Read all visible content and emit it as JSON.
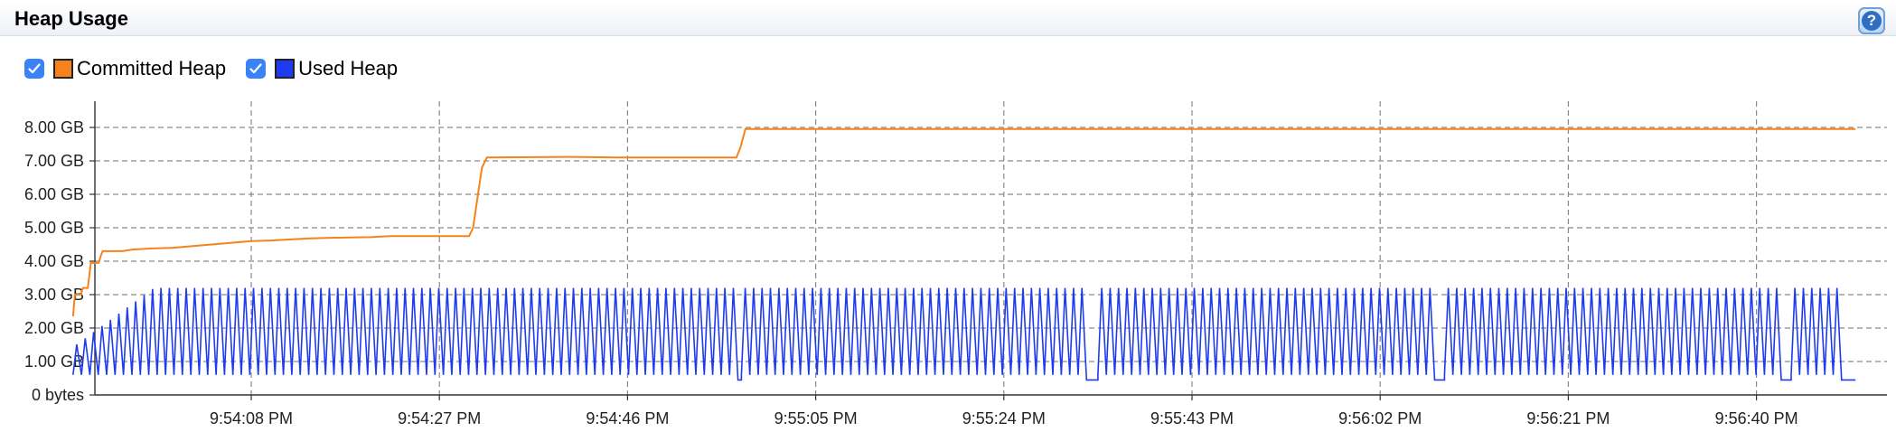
{
  "panel": {
    "title": "Heap Usage",
    "help_label": "?"
  },
  "legend": [
    {
      "label": "Committed Heap",
      "color": "#f7821b",
      "checked": true
    },
    {
      "label": "Used Heap",
      "color": "#1f3bf0",
      "checked": true
    }
  ],
  "chart_data": {
    "type": "line",
    "y_ticks": [
      "0 bytes",
      "1.00 GB",
      "2.00 GB",
      "3.00 GB",
      "4.00 GB",
      "5.00 GB",
      "6.00 GB",
      "7.00 GB",
      "8.00 GB"
    ],
    "x_ticks": [
      "9:54:08 PM",
      "9:54:27 PM",
      "9:54:46 PM",
      "9:55:05 PM",
      "9:55:24 PM",
      "9:55:43 PM",
      "9:56:02 PM",
      "9:56:21 PM",
      "9:56:40 PM"
    ],
    "x_unit": "seconds after 9:53:50 PM",
    "x_range": [
      0,
      180
    ],
    "ylim": [
      0,
      8.8
    ],
    "grid": true,
    "series": [
      {
        "name": "Committed Heap",
        "color": "#f7821b",
        "points": [
          [
            0,
            2.35
          ],
          [
            0.2,
            3.0
          ],
          [
            0.8,
            3.0
          ],
          [
            1,
            3.2
          ],
          [
            1.5,
            3.2
          ],
          [
            1.8,
            3.95
          ],
          [
            2.6,
            3.95
          ],
          [
            2.8,
            4.15
          ],
          [
            3,
            4.3
          ],
          [
            5,
            4.3
          ],
          [
            6,
            4.35
          ],
          [
            8,
            4.38
          ],
          [
            10,
            4.4
          ],
          [
            12,
            4.45
          ],
          [
            14,
            4.5
          ],
          [
            16,
            4.55
          ],
          [
            18,
            4.6
          ],
          [
            20,
            4.62
          ],
          [
            22,
            4.65
          ],
          [
            24,
            4.68
          ],
          [
            26,
            4.7
          ],
          [
            30,
            4.72
          ],
          [
            32,
            4.75
          ],
          [
            36,
            4.75
          ],
          [
            40,
            4.75
          ],
          [
            40.4,
            5.0
          ],
          [
            40.9,
            6.0
          ],
          [
            41.3,
            6.8
          ],
          [
            41.8,
            7.1
          ],
          [
            50,
            7.12
          ],
          [
            55,
            7.1
          ],
          [
            65,
            7.1
          ],
          [
            67,
            7.1
          ],
          [
            67.4,
            7.4
          ],
          [
            67.9,
            7.95
          ],
          [
            180,
            7.95
          ]
        ]
      },
      {
        "name": "Used Heap",
        "color": "#1f3bf0",
        "sawtooth": {
          "low_gb": 0.6,
          "high_gb": 3.2,
          "period_s": 0.85,
          "dips": [
            [
              32.5,
              33
            ],
            [
              67,
              67.5
            ],
            [
              102,
              103.5
            ],
            [
              137,
              138.5
            ],
            [
              172,
              173.5
            ],
            [
              178.5,
              180
            ]
          ]
        }
      }
    ]
  }
}
